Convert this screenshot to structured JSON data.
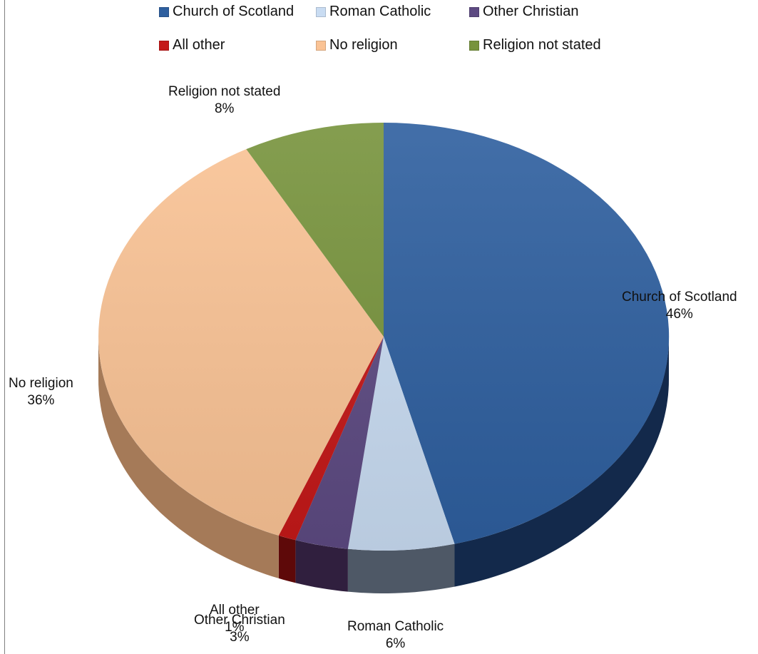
{
  "chart_data": {
    "type": "pie",
    "title": "",
    "three_d": true,
    "legend_placement": "top",
    "categories": [
      "Church of Scotland",
      "Roman Catholic",
      "Other Christian",
      "All other",
      "No religion",
      "Religion not stated"
    ],
    "values": [
      46,
      6,
      3,
      1,
      36,
      8
    ],
    "value_labels": [
      "46%",
      "6%",
      "3%",
      "1%",
      "36%",
      "8%"
    ],
    "colors": [
      "#2e5f9f",
      "#c9dcf2",
      "#5d4a82",
      "#c41818",
      "#fac395",
      "#77933c"
    ],
    "side_colors": [
      "#13294b",
      "#4e5866",
      "#301f3e",
      "#5e0909",
      "#a57a58",
      "#3b4d1d"
    ]
  },
  "legend": {
    "items": [
      {
        "label": "Church of Scotland",
        "color": "#2e5f9f"
      },
      {
        "label": "Roman Catholic",
        "color": "#c9dcf2"
      },
      {
        "label": "Other Christian",
        "color": "#5d4a82"
      },
      {
        "label": "All other",
        "color": "#c41818"
      },
      {
        "label": "No religion",
        "color": "#fac395"
      },
      {
        "label": "Religion not stated",
        "color": "#77933c"
      }
    ]
  }
}
